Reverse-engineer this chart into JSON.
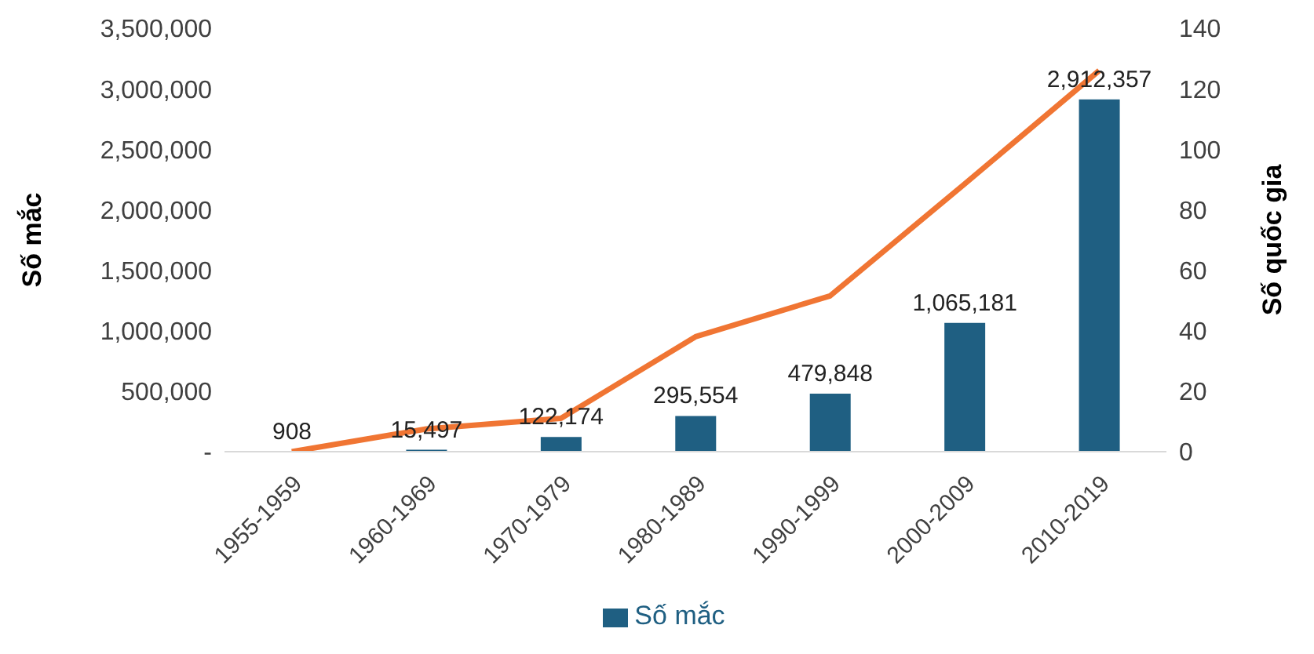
{
  "chart_data": {
    "type": "bar",
    "ylabel": "Số mắc",
    "y2label": "Số quốc gia",
    "categories": [
      "1955-1959",
      "1960-1969",
      "1970-1979",
      "1980-1989",
      "1990-1999",
      "2000-2009",
      "2010-2019"
    ],
    "series": [
      {
        "name": "Số mắc",
        "color": "#1f5f82",
        "values": [
          908,
          15497,
          122174,
          295554,
          479848,
          1065181,
          2912357
        ],
        "value_labels": [
          "908",
          "15,497",
          "122,174",
          "295,554",
          "479,848",
          "1,065,181",
          "2,912,357"
        ]
      },
      {
        "type": "line",
        "axis": "y2",
        "color": "#f07533",
        "values": [
          0,
          7.5,
          11,
          38,
          51.5,
          88.5,
          126
        ]
      }
    ],
    "ylim": [
      0,
      3500000
    ],
    "yticks": [
      {
        "value": 0,
        "label": "-"
      },
      {
        "value": 500000,
        "label": "500,000"
      },
      {
        "value": 1000000,
        "label": "1,000,000"
      },
      {
        "value": 1500000,
        "label": "1,500,000"
      },
      {
        "value": 2000000,
        "label": "2,000,000"
      },
      {
        "value": 2500000,
        "label": "2,500,000"
      },
      {
        "value": 3000000,
        "label": "3,000,000"
      },
      {
        "value": 3500000,
        "label": "3,500,000"
      }
    ],
    "y2lim": [
      0,
      140
    ],
    "y2ticks": [
      0,
      20,
      40,
      60,
      80,
      100,
      120,
      140
    ],
    "legend": "bottom",
    "grid": false,
    "marker": "none"
  }
}
